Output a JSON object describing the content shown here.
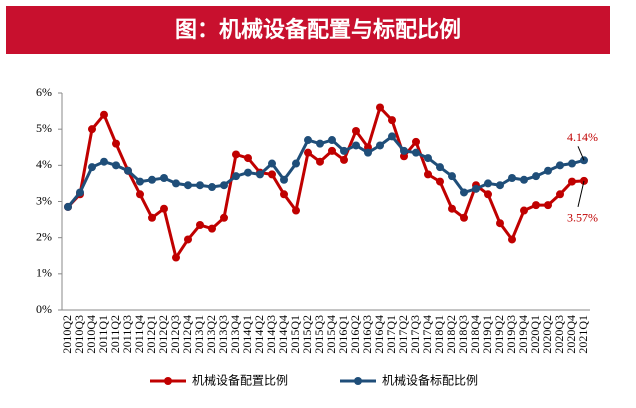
{
  "chart_data": {
    "type": "line",
    "title": "图：机械设备配置与标配比例",
    "categories": [
      "2010Q2",
      "2010Q3",
      "2010Q4",
      "2011Q1",
      "2011Q2",
      "2011Q3",
      "2011Q4",
      "2012Q1",
      "2012Q2",
      "2012Q3",
      "2012Q4",
      "2013Q1",
      "2013Q2",
      "2013Q3",
      "2013Q4",
      "2014Q1",
      "2014Q2",
      "2014Q3",
      "2014Q4",
      "2015Q1",
      "2015Q2",
      "2015Q3",
      "2015Q4",
      "2016Q1",
      "2016Q2",
      "2016Q3",
      "2016Q4",
      "2017Q1",
      "2017Q2",
      "2017Q3",
      "2017Q4",
      "2018Q1",
      "2018Q2",
      "2018Q3",
      "2018Q4",
      "2019Q1",
      "2019Q2",
      "2019Q3",
      "2019Q4",
      "2020Q1",
      "2020Q2",
      "2020Q3",
      "2020Q4",
      "2021Q1"
    ],
    "series": [
      {
        "name": "机械设备配置比例",
        "color": "#c00000",
        "end_label": "3.57%",
        "values": [
          2.85,
          3.2,
          5.0,
          5.4,
          4.6,
          3.85,
          3.2,
          2.55,
          2.8,
          1.45,
          1.95,
          2.35,
          2.25,
          2.55,
          4.3,
          4.2,
          3.8,
          3.75,
          3.2,
          2.75,
          4.35,
          4.1,
          4.4,
          4.15,
          4.95,
          4.5,
          5.6,
          5.25,
          4.25,
          4.65,
          3.75,
          3.55,
          2.8,
          2.55,
          3.45,
          3.2,
          2.4,
          1.95,
          2.75,
          2.9,
          2.9,
          3.2,
          3.55,
          3.57
        ]
      },
      {
        "name": "机械设备标配比例",
        "color": "#1f4e79",
        "end_label": "4.14%",
        "values": [
          2.85,
          3.25,
          3.95,
          4.1,
          4.0,
          3.85,
          3.55,
          3.6,
          3.65,
          3.5,
          3.45,
          3.45,
          3.4,
          3.45,
          3.7,
          3.8,
          3.75,
          4.05,
          3.6,
          4.05,
          4.7,
          4.6,
          4.7,
          4.4,
          4.55,
          4.35,
          4.55,
          4.8,
          4.4,
          4.35,
          4.2,
          3.95,
          3.7,
          3.25,
          3.35,
          3.5,
          3.45,
          3.65,
          3.6,
          3.7,
          3.85,
          4.0,
          4.05,
          4.14
        ]
      }
    ],
    "ylim": [
      0,
      6
    ],
    "yticks": [
      {
        "value": 0,
        "label": "0%"
      },
      {
        "value": 1,
        "label": "1%"
      },
      {
        "value": 2,
        "label": "2%"
      },
      {
        "value": 3,
        "label": "3%"
      },
      {
        "value": 4,
        "label": "4%"
      },
      {
        "value": 5,
        "label": "5%"
      },
      {
        "value": 6,
        "label": "6%"
      }
    ],
    "grid": false
  }
}
